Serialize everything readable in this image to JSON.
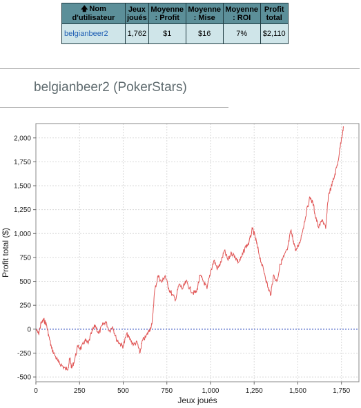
{
  "table": {
    "headers": [
      "Nom d'utilisateur",
      "Jeux joués",
      "Moyenne : Profit",
      "Moyenne : Mise",
      "Moyenne : ROI",
      "Profit total"
    ],
    "rows": [
      {
        "username": "belgianbeer2",
        "games": "1,762",
        "avg_profit": "$1",
        "avg_stake": "$16",
        "avg_roi": "7%",
        "total_profit": "$2,110"
      }
    ],
    "sort_icon": "up-arrow-icon"
  },
  "page": {
    "title": "belgianbeer2 (PokerStars)"
  },
  "chart_data": {
    "type": "line",
    "xlabel": "Jeux joués",
    "ylabel": "Profit total ($)",
    "xlim": [
      0,
      1850
    ],
    "ylim": [
      -550,
      2150
    ],
    "x_ticks": [
      0,
      250,
      500,
      750,
      1000,
      1250,
      1500,
      1750
    ],
    "x_tick_labels": [
      "0",
      "250",
      "500",
      "750",
      "1,000",
      "1,250",
      "1,500",
      "1,750"
    ],
    "y_ticks": [
      -500,
      -250,
      0,
      250,
      500,
      750,
      1000,
      1250,
      1500,
      1750,
      2000
    ],
    "y_tick_labels": [
      "-500",
      "-250",
      "0",
      "250",
      "500",
      "750",
      "1,000",
      "1,250",
      "1,500",
      "1,750",
      "2,000"
    ],
    "grid": true,
    "zero_line": true,
    "line_color": "#e05555",
    "zero_line_color": "#1f3fbf",
    "series": [
      {
        "x": [
          0,
          15,
          30,
          45,
          60,
          75,
          90,
          110,
          130,
          150,
          170,
          185,
          195,
          205,
          220,
          240,
          260,
          280,
          300,
          320,
          340,
          360,
          380,
          400,
          420,
          440,
          460,
          480,
          500,
          520,
          540,
          560,
          580,
          595,
          610,
          630,
          650,
          665,
          680,
          700,
          720,
          740,
          760,
          780,
          800,
          820,
          840,
          860,
          880,
          900,
          920,
          940,
          960,
          980,
          1000,
          1020,
          1040,
          1060,
          1080,
          1100,
          1120,
          1140,
          1160,
          1180,
          1200,
          1220,
          1240,
          1255,
          1270,
          1290,
          1310,
          1330,
          1345,
          1360,
          1380,
          1400,
          1420,
          1440,
          1460,
          1475,
          1490,
          1510,
          1530,
          1550,
          1570,
          1590,
          1600,
          1620,
          1640,
          1660,
          1675,
          1690,
          1710,
          1730,
          1750,
          1762
        ],
        "y": [
          0,
          -50,
          60,
          100,
          50,
          -80,
          -200,
          -280,
          -350,
          -380,
          -420,
          -400,
          -300,
          -410,
          -330,
          -180,
          -200,
          -120,
          -150,
          -30,
          40,
          -50,
          40,
          80,
          -20,
          30,
          -100,
          -150,
          -180,
          -50,
          -110,
          -160,
          -140,
          -250,
          -120,
          -80,
          -10,
          50,
          400,
          560,
          490,
          560,
          430,
          360,
          310,
          470,
          420,
          500,
          430,
          380,
          390,
          560,
          500,
          420,
          600,
          720,
          630,
          700,
          820,
          720,
          800,
          760,
          700,
          760,
          860,
          900,
          1050,
          970,
          850,
          700,
          580,
          430,
          360,
          560,
          500,
          680,
          760,
          830,
          1030,
          920,
          820,
          900,
          1050,
          1230,
          1380,
          1300,
          1180,
          1060,
          1150,
          1050,
          1400,
          1480,
          1600,
          1750,
          2000,
          2110
        ]
      }
    ]
  }
}
